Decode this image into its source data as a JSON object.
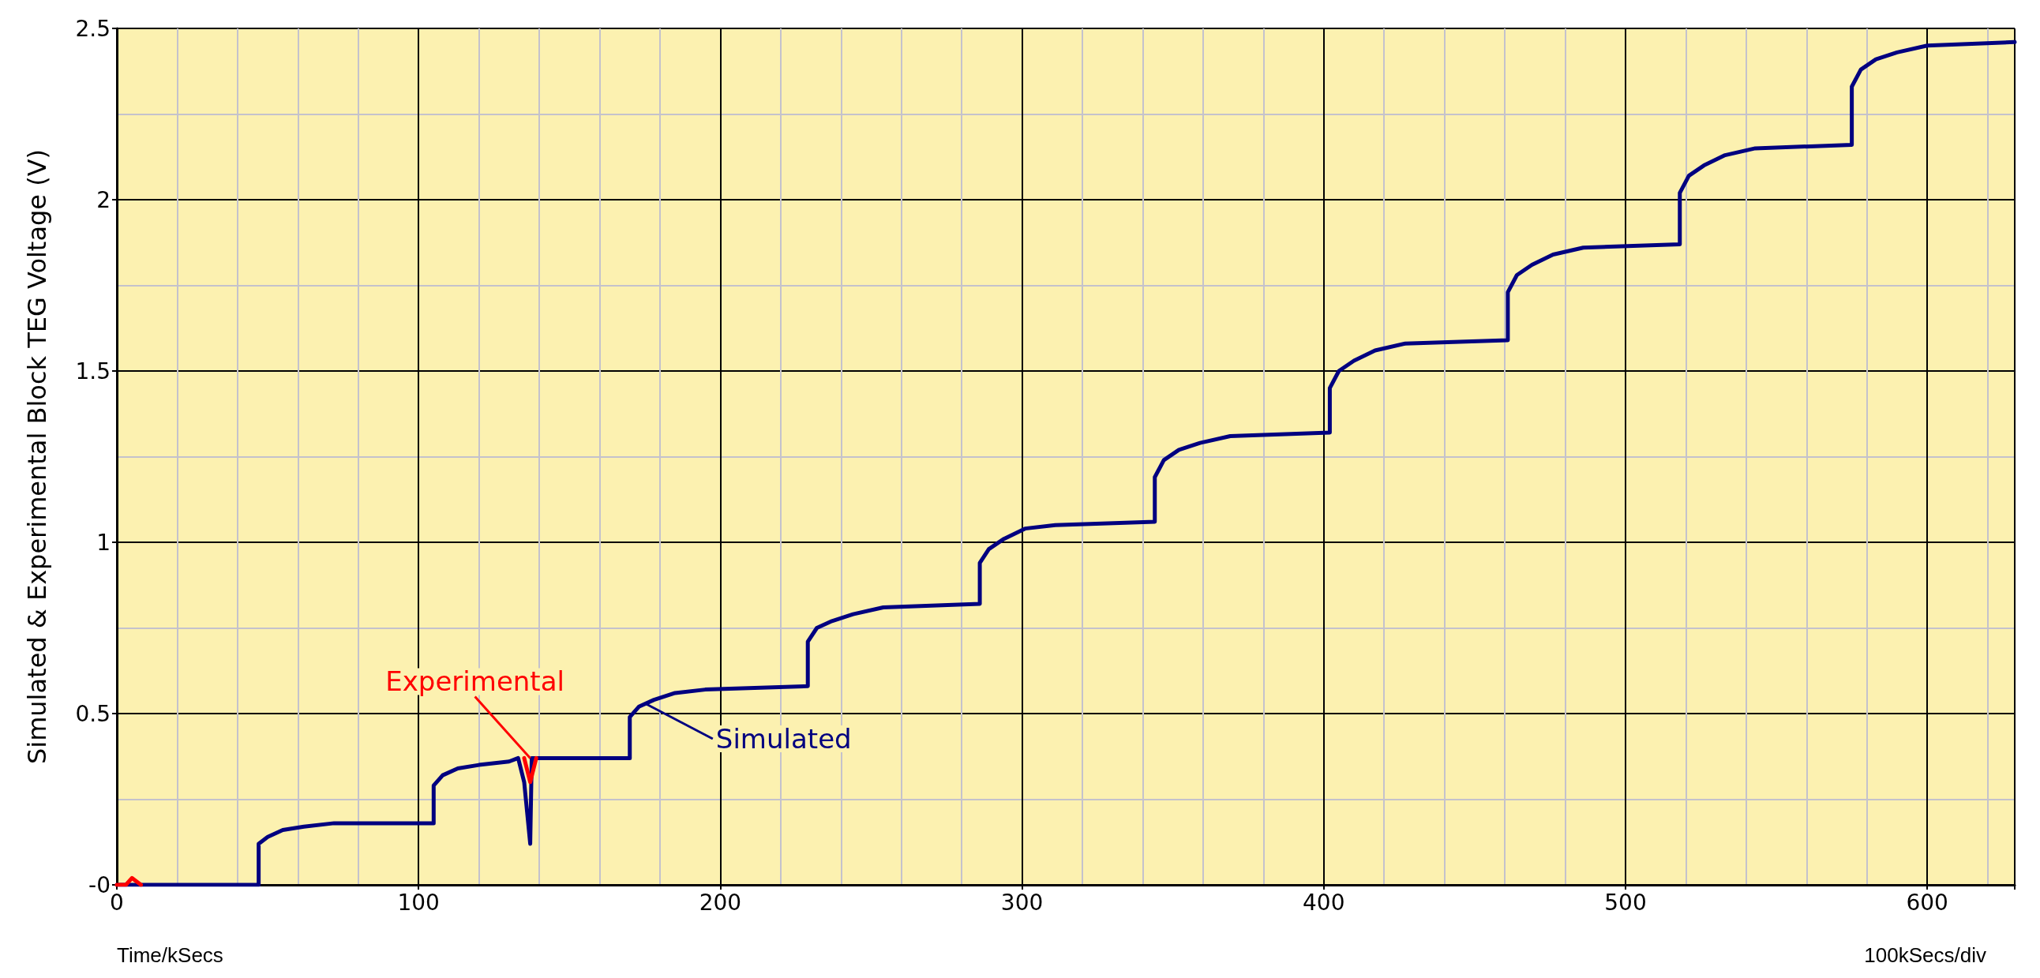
{
  "chart_data": {
    "type": "line",
    "xlabel": "Time/kSecs",
    "ylabel": "Simulated & Experimental Block TEG Voltage (V)",
    "xlim": [
      0,
      629
    ],
    "xticks": [
      0,
      100,
      200,
      300,
      400,
      500,
      600
    ],
    "ylim": [
      0,
      2.5
    ],
    "yticks": [
      {
        "value": 0,
        "label": "-0"
      },
      0.5,
      1,
      1.5,
      2,
      2.5
    ],
    "grid": true,
    "marker": "none",
    "line_style": "solid",
    "annotations": [
      {
        "text": "Experimental",
        "x": 137,
        "y": 0.37
      },
      {
        "text": "Simulated",
        "x": 175,
        "y": 0.53
      },
      "100kSecs/div"
    ],
    "series": [
      {
        "color": "#ff0000",
        "x": [
          0,
          3,
          5,
          8,
          20,
          135,
          137,
          139
        ],
        "values": [
          0,
          0,
          0.02,
          0,
          null,
          0.37,
          0.3,
          0.37
        ]
      },
      {
        "color": "#000080",
        "x": [
          0,
          47,
          47,
          50,
          55,
          62,
          72,
          105,
          105,
          108,
          113,
          120,
          130,
          133,
          135,
          137,
          137.5,
          170,
          170,
          173,
          178,
          185,
          195,
          229,
          229,
          232,
          237,
          244,
          254,
          286,
          286,
          289,
          294,
          301,
          311,
          344,
          344,
          347,
          352,
          359,
          369,
          402,
          402,
          405,
          410,
          417,
          427,
          461,
          461,
          464,
          469,
          476,
          486,
          518,
          518,
          521,
          526,
          533,
          543,
          575,
          575,
          578,
          583,
          590,
          600,
          629
        ],
        "values": [
          0,
          0,
          0.12,
          0.14,
          0.16,
          0.17,
          0.18,
          0.18,
          0.29,
          0.32,
          0.34,
          0.35,
          0.36,
          0.37,
          0.3,
          0.12,
          0.37,
          0.37,
          0.49,
          0.52,
          0.54,
          0.56,
          0.57,
          0.58,
          0.71,
          0.75,
          0.77,
          0.79,
          0.81,
          0.82,
          0.94,
          0.98,
          1.01,
          1.04,
          1.05,
          1.06,
          1.19,
          1.24,
          1.27,
          1.29,
          1.31,
          1.32,
          1.45,
          1.5,
          1.53,
          1.56,
          1.58,
          1.59,
          1.73,
          1.78,
          1.81,
          1.84,
          1.86,
          1.87,
          2.02,
          2.07,
          2.1,
          2.13,
          2.15,
          2.16,
          2.33,
          2.38,
          2.41,
          2.43,
          2.45,
          2.46
        ]
      }
    ]
  }
}
